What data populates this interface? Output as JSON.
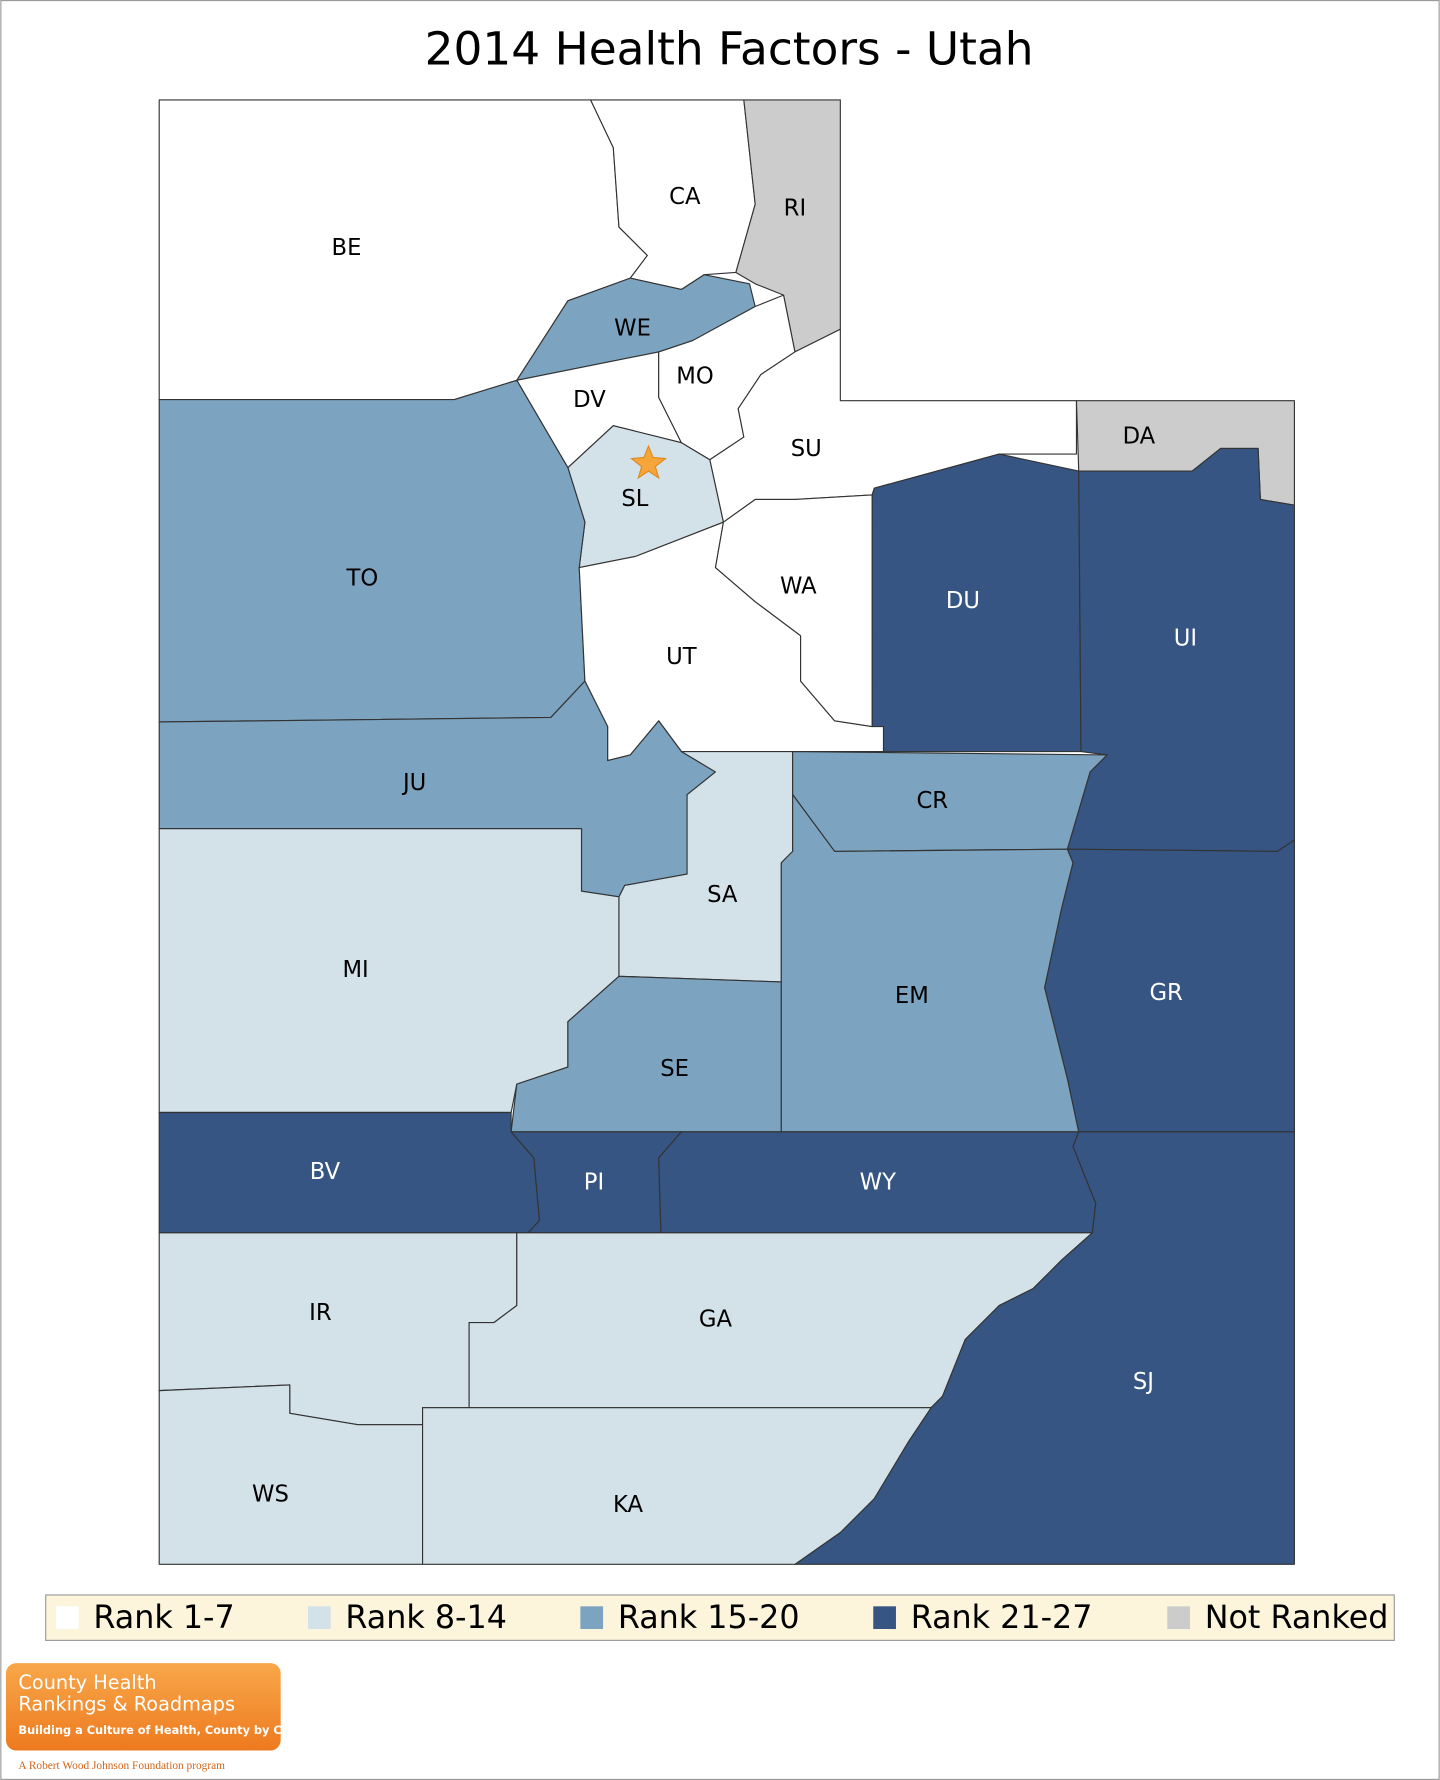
{
  "title": "2014 Health Factors - Utah",
  "counties": [
    {
      "label": "BE",
      "color": "#ffffff"
    },
    {
      "label": "CA",
      "color": "#ffffff"
    },
    {
      "label": "RI",
      "color": "#cccccc"
    },
    {
      "label": "WE",
      "color": "#7ca3bf"
    },
    {
      "label": "DV",
      "color": "#ffffff"
    },
    {
      "label": "MO",
      "color": "#ffffff"
    },
    {
      "label": "SU",
      "color": "#ffffff"
    },
    {
      "label": "DA",
      "color": "#cccccc"
    },
    {
      "label": "DU",
      "color": "#365583"
    },
    {
      "label": "UI",
      "color": "#365583"
    },
    {
      "label": "SL",
      "color": "#d3e1e9"
    },
    {
      "label": "TO",
      "color": "#7ca3bf"
    },
    {
      "label": "UT",
      "color": "#ffffff"
    },
    {
      "label": "WA",
      "color": "#ffffff"
    },
    {
      "label": "JU",
      "color": "#7ca3bf"
    },
    {
      "label": "MI",
      "color": "#d3e1e9"
    },
    {
      "label": "SA",
      "color": "#d3e1e9"
    },
    {
      "label": "SE",
      "color": "#7ca3bf"
    },
    {
      "label": "CR",
      "color": "#7ca3bf"
    },
    {
      "label": "EM",
      "color": "#7ca3bf"
    },
    {
      "label": "GR",
      "color": "#365583"
    },
    {
      "label": "BV",
      "color": "#365583"
    },
    {
      "label": "PI",
      "color": "#365583"
    },
    {
      "label": "WY",
      "color": "#365583"
    },
    {
      "label": "IR",
      "color": "#d3e1e9"
    },
    {
      "label": "GA",
      "color": "#d3e1e9"
    },
    {
      "label": "SJ",
      "color": "#365583"
    },
    {
      "label": "WS",
      "color": "#d3e1e9"
    },
    {
      "label": "KA",
      "color": "#d3e1e9"
    }
  ],
  "legend": [
    {
      "label": "Rank 1-7",
      "color": "#ffffff"
    },
    {
      "label": "Rank 8-14",
      "color": "#d3e1e9"
    },
    {
      "label": "Rank 15-20",
      "color": "#7ca3bf"
    },
    {
      "label": "Rank 21-27",
      "color": "#365583"
    },
    {
      "label": "Not Ranked",
      "color": "#cccccc"
    }
  ],
  "logo": {
    "line1": "County Health",
    "line2": "Rankings & Roadmaps",
    "tagline": "Building a Culture of Health, County by County",
    "program": "A Robert Wood Johnson Foundation program"
  }
}
